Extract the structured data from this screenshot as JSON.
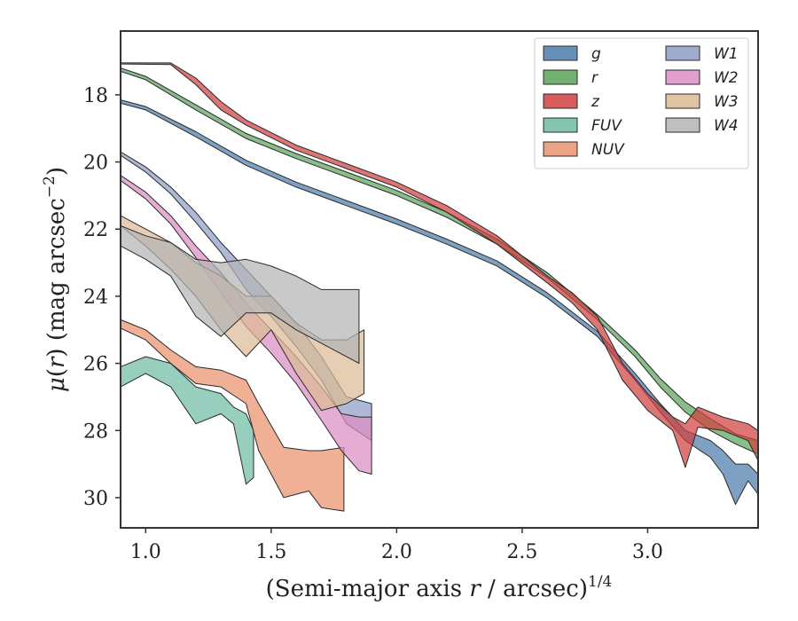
{
  "chart_data": {
    "type": "area",
    "xlabel": "(Semi-major axis r / arcsec)^1/4",
    "xlabel_parts": {
      "pre": "(Semi-major axis ",
      "var": "r",
      "post": " / arcsec)",
      "sup": "1/4"
    },
    "ylabel": "μ(r) (mag arcsec⁻²)",
    "ylabel_parts": {
      "mu": "μ",
      "open": "(",
      "var": "r",
      "close": ") (mag arcsec",
      "sup": "−2",
      "end": ")"
    },
    "xlim": [
      0.9,
      3.44
    ],
    "ylim": [
      30.9,
      16.1
    ],
    "y_inverted": true,
    "x_ticks": [
      1.0,
      1.5,
      2.0,
      2.5,
      3.0
    ],
    "x_tick_labels": [
      "1.0",
      "1.5",
      "2.0",
      "2.5",
      "3.0"
    ],
    "y_ticks": [
      18,
      20,
      22,
      24,
      26,
      28,
      30
    ],
    "y_tick_labels": [
      "18",
      "20",
      "22",
      "24",
      "26",
      "28",
      "30"
    ],
    "legend": {
      "position": "top-right",
      "columns": 2
    },
    "series": [
      {
        "name": "g",
        "color": "#4c7dac",
        "points": [
          [
            0.9,
            18.15,
            18.25
          ],
          [
            1.0,
            18.35,
            18.45
          ],
          [
            1.2,
            19.1,
            19.25
          ],
          [
            1.4,
            19.95,
            20.1
          ],
          [
            1.6,
            20.6,
            20.75
          ],
          [
            1.8,
            21.15,
            21.3
          ],
          [
            2.0,
            21.7,
            21.85
          ],
          [
            2.2,
            22.3,
            22.45
          ],
          [
            2.4,
            22.95,
            23.1
          ],
          [
            2.6,
            23.9,
            24.05
          ],
          [
            2.8,
            25.05,
            25.2
          ],
          [
            2.95,
            26.3,
            26.5
          ],
          [
            3.05,
            27.2,
            27.45
          ],
          [
            3.15,
            28.0,
            28.3
          ],
          [
            3.25,
            28.3,
            28.8
          ],
          [
            3.3,
            28.6,
            29.3
          ],
          [
            3.35,
            29.0,
            30.2
          ],
          [
            3.4,
            29.0,
            29.5
          ],
          [
            3.44,
            29.3,
            29.9
          ]
        ]
      },
      {
        "name": "r",
        "color": "#5ba35b",
        "points": [
          [
            0.9,
            17.2,
            17.3
          ],
          [
            1.0,
            17.45,
            17.55
          ],
          [
            1.2,
            18.3,
            18.45
          ],
          [
            1.4,
            19.15,
            19.3
          ],
          [
            1.6,
            19.75,
            19.9
          ],
          [
            1.8,
            20.3,
            20.45
          ],
          [
            2.0,
            20.85,
            21.0
          ],
          [
            2.2,
            21.5,
            21.65
          ],
          [
            2.4,
            22.3,
            22.45
          ],
          [
            2.6,
            23.3,
            23.45
          ],
          [
            2.8,
            24.55,
            24.7
          ],
          [
            2.95,
            25.6,
            25.8
          ],
          [
            3.05,
            26.45,
            26.7
          ],
          [
            3.15,
            27.15,
            27.45
          ],
          [
            3.25,
            27.65,
            28.0
          ],
          [
            3.35,
            28.1,
            28.4
          ],
          [
            3.44,
            28.3,
            28.7
          ]
        ]
      },
      {
        "name": "z",
        "color": "#d04040",
        "points": [
          [
            0.9,
            17.05,
            17.08
          ],
          [
            1.1,
            17.05,
            17.1
          ],
          [
            1.2,
            17.5,
            17.7
          ],
          [
            1.3,
            18.2,
            18.45
          ],
          [
            1.4,
            18.75,
            18.9
          ],
          [
            1.6,
            19.5,
            19.65
          ],
          [
            1.8,
            20.05,
            20.2
          ],
          [
            2.0,
            20.6,
            20.75
          ],
          [
            2.2,
            21.3,
            21.5
          ],
          [
            2.4,
            22.2,
            22.45
          ],
          [
            2.6,
            23.4,
            23.6
          ],
          [
            2.7,
            23.9,
            24.2
          ],
          [
            2.8,
            24.6,
            25.0
          ],
          [
            2.9,
            26.0,
            26.5
          ],
          [
            3.0,
            26.9,
            27.4
          ],
          [
            3.1,
            27.6,
            28.0
          ],
          [
            3.15,
            27.8,
            29.1
          ],
          [
            3.2,
            27.3,
            27.9
          ],
          [
            3.3,
            27.6,
            28.0
          ],
          [
            3.4,
            27.8,
            28.3
          ],
          [
            3.44,
            28.0,
            28.9
          ]
        ]
      },
      {
        "name": "FUV",
        "color": "#6fbba3",
        "points": [
          [
            0.9,
            26.1,
            26.7
          ],
          [
            1.0,
            25.8,
            26.3
          ],
          [
            1.1,
            26.0,
            26.7
          ],
          [
            1.2,
            26.7,
            27.8
          ],
          [
            1.3,
            26.9,
            27.5
          ],
          [
            1.35,
            27.3,
            27.8
          ],
          [
            1.4,
            27.5,
            29.6
          ],
          [
            1.43,
            28.0,
            29.4
          ]
        ]
      },
      {
        "name": "NUV",
        "color": "#e9926e",
        "points": [
          [
            0.9,
            24.7,
            24.95
          ],
          [
            1.0,
            25.0,
            25.3
          ],
          [
            1.1,
            25.6,
            26.0
          ],
          [
            1.2,
            26.1,
            26.6
          ],
          [
            1.3,
            26.2,
            26.7
          ],
          [
            1.4,
            26.5,
            27.2
          ],
          [
            1.45,
            27.2,
            28.6
          ],
          [
            1.55,
            28.5,
            30.0
          ],
          [
            1.65,
            28.6,
            29.8
          ],
          [
            1.7,
            28.6,
            30.3
          ],
          [
            1.79,
            28.5,
            30.4
          ]
        ]
      },
      {
        "name": "W1",
        "color": "#8f9ec7",
        "points": [
          [
            0.9,
            19.7,
            19.8
          ],
          [
            1.0,
            20.15,
            20.3
          ],
          [
            1.1,
            20.75,
            20.95
          ],
          [
            1.2,
            21.5,
            21.8
          ],
          [
            1.3,
            22.4,
            22.7
          ],
          [
            1.4,
            23.2,
            23.8
          ],
          [
            1.5,
            24.0,
            24.6
          ],
          [
            1.6,
            24.8,
            25.5
          ],
          [
            1.7,
            25.8,
            26.5
          ],
          [
            1.8,
            27.0,
            27.8
          ],
          [
            1.9,
            27.2,
            28.3
          ]
        ]
      },
      {
        "name": "W2",
        "color": "#dd8ec4",
        "points": [
          [
            0.9,
            20.4,
            20.55
          ],
          [
            1.0,
            20.9,
            21.1
          ],
          [
            1.1,
            21.6,
            21.85
          ],
          [
            1.2,
            22.5,
            22.85
          ],
          [
            1.3,
            23.3,
            23.9
          ],
          [
            1.4,
            24.2,
            24.9
          ],
          [
            1.5,
            25.0,
            25.7
          ],
          [
            1.6,
            25.8,
            26.6
          ],
          [
            1.7,
            26.7,
            27.7
          ],
          [
            1.78,
            27.5,
            28.6
          ],
          [
            1.85,
            27.6,
            29.2
          ],
          [
            1.9,
            27.6,
            29.3
          ]
        ]
      },
      {
        "name": "W3",
        "color": "#dbbb95",
        "points": [
          [
            0.9,
            21.6,
            21.9
          ],
          [
            1.0,
            22.0,
            22.5
          ],
          [
            1.1,
            22.4,
            23.2
          ],
          [
            1.2,
            23.0,
            24.0
          ],
          [
            1.3,
            23.4,
            25.0
          ],
          [
            1.4,
            24.0,
            25.8
          ],
          [
            1.5,
            24.0,
            25.0
          ],
          [
            1.6,
            24.8,
            26.3
          ],
          [
            1.7,
            25.3,
            27.4
          ],
          [
            1.8,
            25.3,
            27.2
          ],
          [
            1.87,
            25.0,
            26.9
          ]
        ]
      },
      {
        "name": "W4",
        "color": "#b4b4b4",
        "points": [
          [
            0.9,
            21.9,
            22.5
          ],
          [
            1.0,
            22.2,
            22.9
          ],
          [
            1.1,
            22.4,
            23.4
          ],
          [
            1.2,
            22.9,
            24.6
          ],
          [
            1.3,
            23.0,
            25.2
          ],
          [
            1.4,
            22.9,
            24.5
          ],
          [
            1.5,
            23.1,
            24.5
          ],
          [
            1.6,
            23.4,
            25.0
          ],
          [
            1.7,
            23.8,
            25.4
          ],
          [
            1.85,
            23.8,
            26.0
          ]
        ]
      }
    ]
  }
}
